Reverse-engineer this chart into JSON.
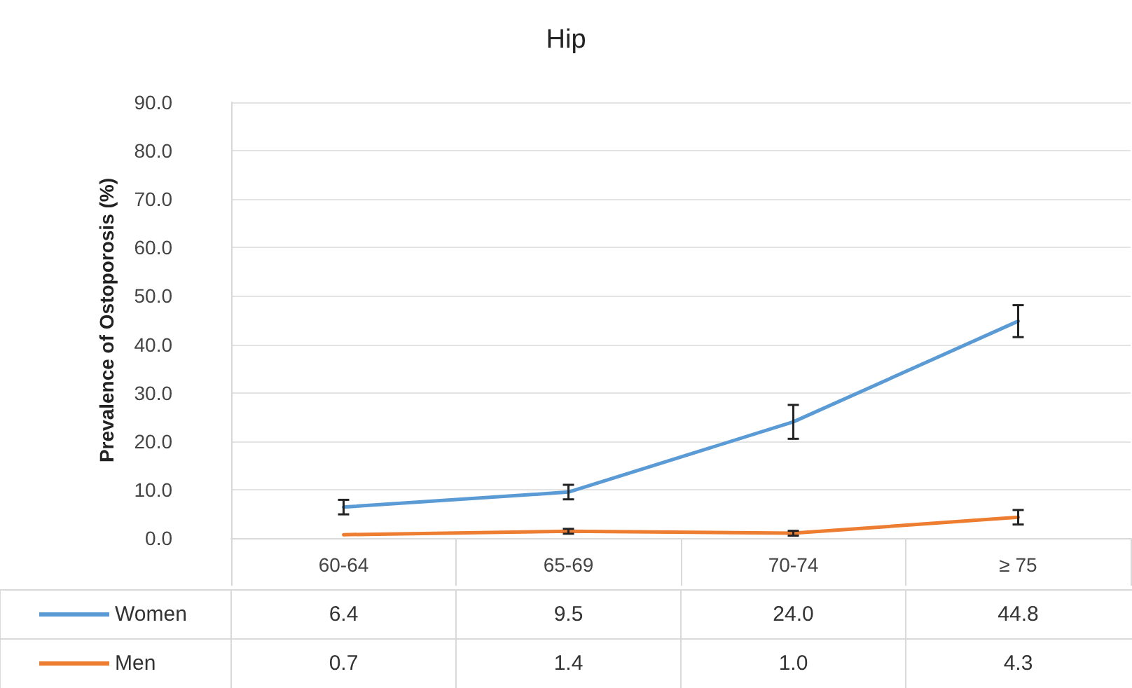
{
  "chart_data": {
    "type": "line",
    "title": "Hip",
    "ylabel": "Prevalence of Ostoporosis (%)",
    "categories": [
      "60-64",
      "65-69",
      "70-74",
      "≥ 75"
    ],
    "series": [
      {
        "name": "Women",
        "color": "#5b9bd5",
        "values": [
          6.4,
          9.5,
          24.0,
          44.8
        ],
        "errors": [
          1.5,
          1.5,
          3.5,
          3.3
        ],
        "value_labels": [
          "6.4",
          "9.5",
          "24.0",
          "44.8"
        ]
      },
      {
        "name": "Men",
        "color": "#ed7d31",
        "values": [
          0.7,
          1.4,
          1.0,
          4.3
        ],
        "errors": [
          null,
          0.5,
          0.5,
          1.5
        ],
        "value_labels": [
          "0.7",
          "1.4",
          "1.0",
          "4.3"
        ]
      }
    ],
    "ylim": [
      0,
      90
    ],
    "yticks": [
      {
        "value": 0,
        "label": "0.0"
      },
      {
        "value": 10,
        "label": "10.0"
      },
      {
        "value": 20,
        "label": "20.0"
      },
      {
        "value": 30,
        "label": "30.0"
      },
      {
        "value": 40,
        "label": "40.0"
      },
      {
        "value": 50,
        "label": "50.0"
      },
      {
        "value": 60,
        "label": "60.0"
      },
      {
        "value": 70,
        "label": "70.0"
      },
      {
        "value": 80,
        "label": "80.0"
      },
      {
        "value": 90,
        "label": "90.0"
      }
    ],
    "grid": "y",
    "legend": "bottom",
    "marker": "none",
    "line_style": "solid"
  }
}
